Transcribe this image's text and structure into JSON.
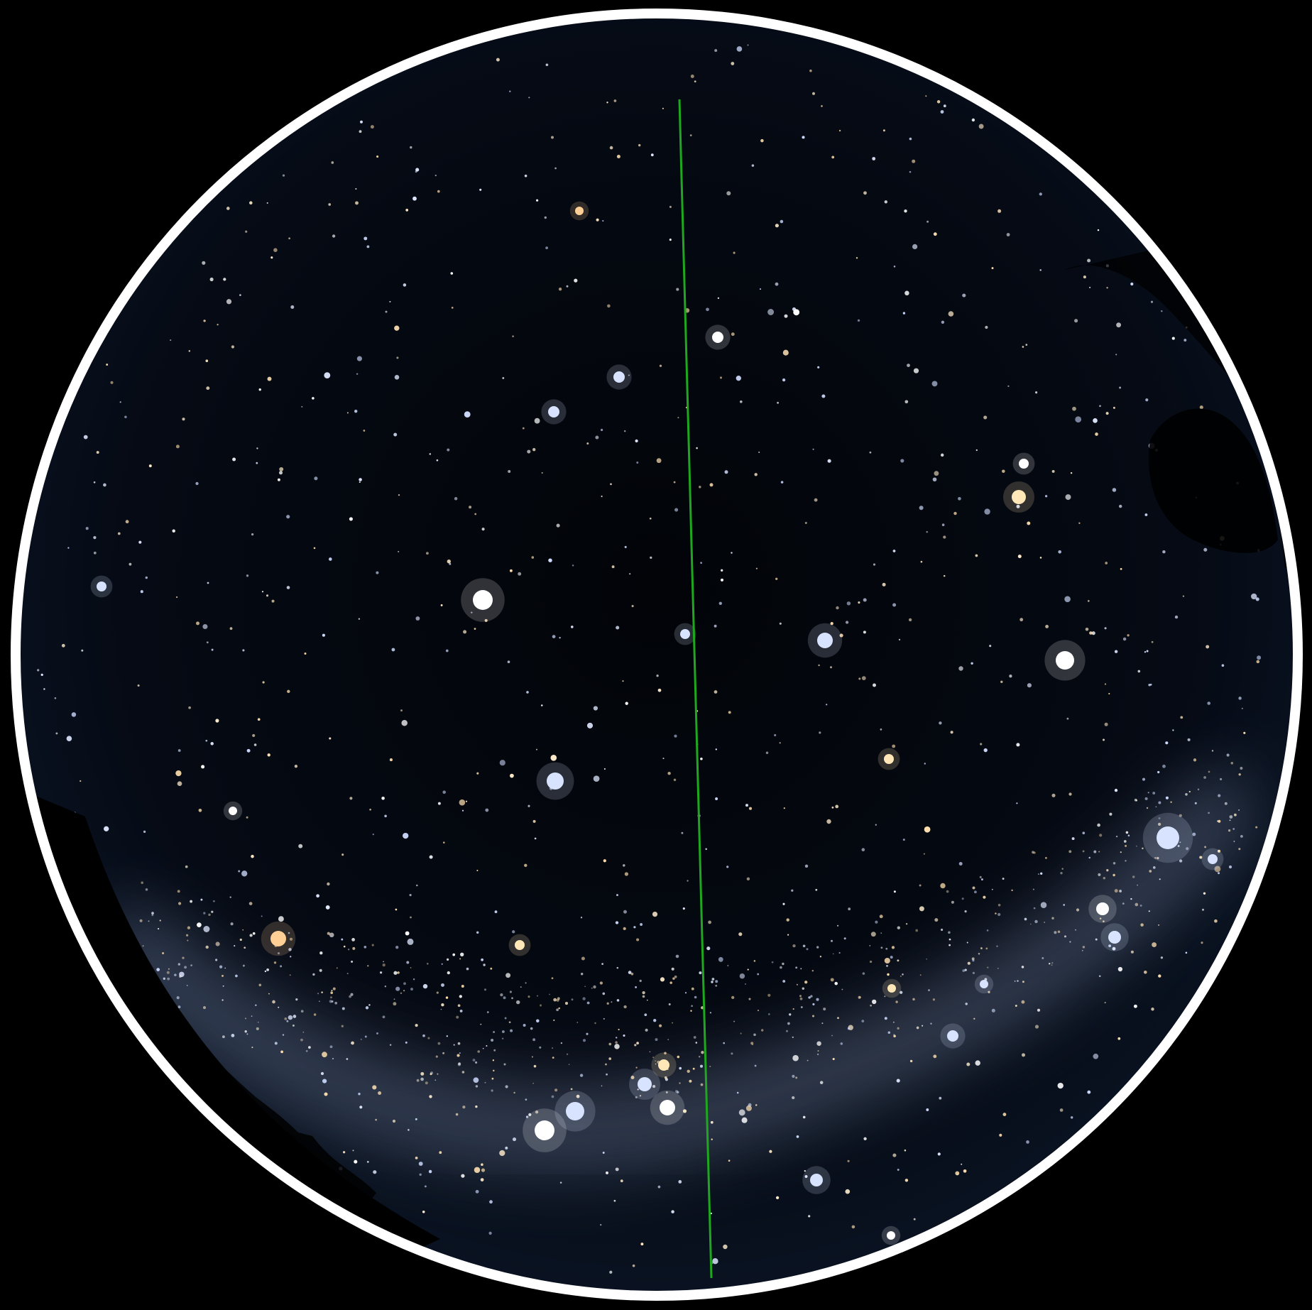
{
  "view": {
    "kind": "all-sky fisheye star view",
    "background_color": "#000000",
    "sky_color": "#03060c",
    "ring_color": "#ffffff",
    "meridian_line_color": "#1fa81f",
    "milky_way_color": "#9fb4d6",
    "horizon_silhouette_color": "#000000"
  },
  "stars": {
    "bright_colors": {
      "white": "#ffffff",
      "blue_white": "#d8e4ff",
      "yellow": "#ffe7b8",
      "orange": "#ffcf96"
    }
  }
}
